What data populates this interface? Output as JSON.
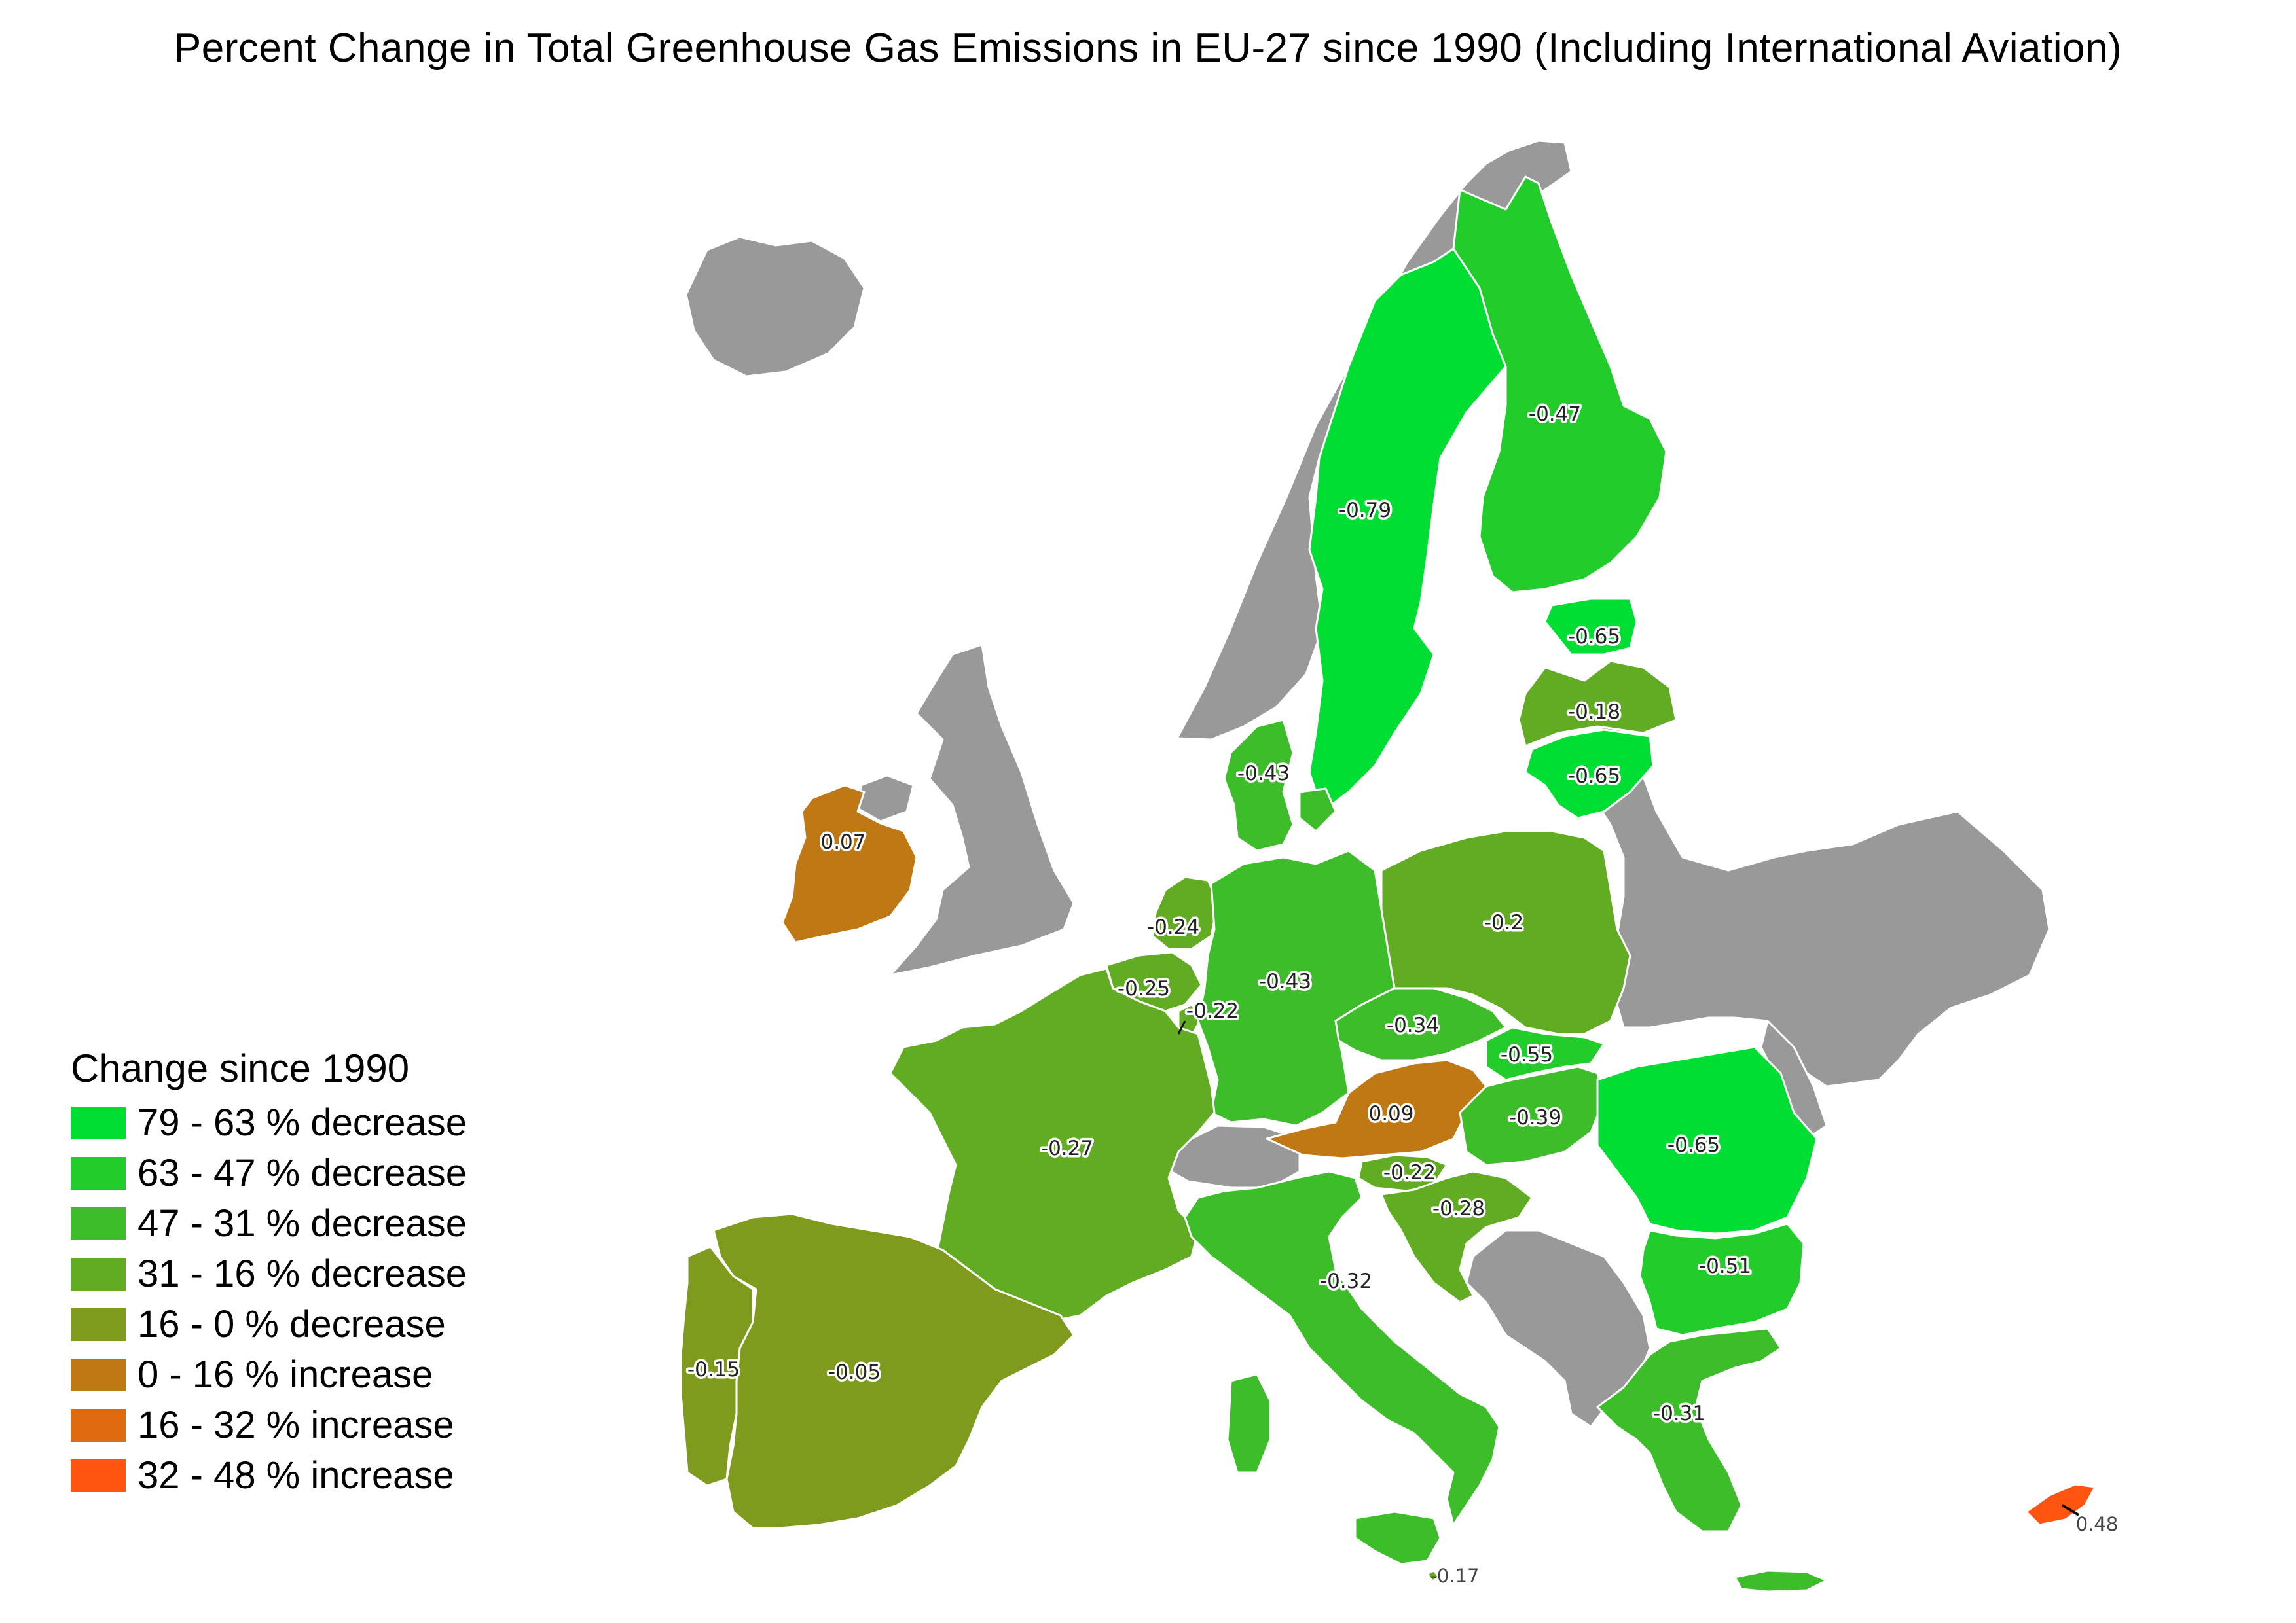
{
  "title": "Percent Change in Total Greenhouse Gas Emissions in EU-27 since 1990 (Including International Aviation)",
  "legend": {
    "title": "Change since 1990",
    "items": [
      {
        "label": "79 - 63 % decrease",
        "color": "#00dd33"
      },
      {
        "label": "63 - 47 % decrease",
        "color": "#22cc2a"
      },
      {
        "label": "47 - 31 % decrease",
        "color": "#3ebd2a"
      },
      {
        "label": "31 - 16 % decrease",
        "color": "#62ac24"
      },
      {
        "label": "16 - 0 % decrease",
        "color": "#7f9b1e"
      },
      {
        "label": "0 - 16 % increase",
        "color": "#c07815"
      },
      {
        "label": "16 - 32 % increase",
        "color": "#e06a10"
      },
      {
        "label": "32 - 48 % increase",
        "color": "#ff5511"
      }
    ]
  },
  "no_data_color": "#999999",
  "countries": [
    {
      "id": "sweden",
      "value": -0.79,
      "label": "-0.79"
    },
    {
      "id": "finland",
      "value": -0.47,
      "label": "-0.47"
    },
    {
      "id": "estonia",
      "value": -0.65,
      "label": "-0.65"
    },
    {
      "id": "latvia",
      "value": -0.18,
      "label": "-0.18"
    },
    {
      "id": "lithuania",
      "value": -0.65,
      "label": "-0.65"
    },
    {
      "id": "denmark",
      "value": -0.43,
      "label": "-0.43"
    },
    {
      "id": "ireland",
      "value": 0.07,
      "label": "0.07"
    },
    {
      "id": "netherlands",
      "value": -0.24,
      "label": "-0.24"
    },
    {
      "id": "belgium",
      "value": -0.25,
      "label": "-0.25"
    },
    {
      "id": "luxembourg",
      "value": -0.22,
      "label": "-0.22"
    },
    {
      "id": "germany",
      "value": -0.43,
      "label": "-0.43"
    },
    {
      "id": "poland",
      "value": -0.2,
      "label": "-0.2"
    },
    {
      "id": "czechia",
      "value": -0.34,
      "label": "-0.34"
    },
    {
      "id": "slovakia",
      "value": -0.55,
      "label": "-0.55"
    },
    {
      "id": "austria",
      "value": 0.09,
      "label": "0.09"
    },
    {
      "id": "hungary",
      "value": -0.39,
      "label": "-0.39"
    },
    {
      "id": "romania",
      "value": -0.65,
      "label": "-0.65"
    },
    {
      "id": "france",
      "value": -0.27,
      "label": "-0.27"
    },
    {
      "id": "slovenia",
      "value": -0.22,
      "label": "-0.22"
    },
    {
      "id": "croatia",
      "value": -0.28,
      "label": "-0.28"
    },
    {
      "id": "bulgaria",
      "value": -0.51,
      "label": "-0.51"
    },
    {
      "id": "italy",
      "value": -0.32,
      "label": "-0.32"
    },
    {
      "id": "spain",
      "value": -0.05,
      "label": "-0.05"
    },
    {
      "id": "portugal",
      "value": -0.15,
      "label": "-0.15"
    },
    {
      "id": "greece",
      "value": -0.31,
      "label": "-0.31"
    },
    {
      "id": "malta",
      "value": -0.17,
      "label": "-0.17"
    },
    {
      "id": "cyprus",
      "value": 0.48,
      "label": "0.48"
    }
  ]
}
